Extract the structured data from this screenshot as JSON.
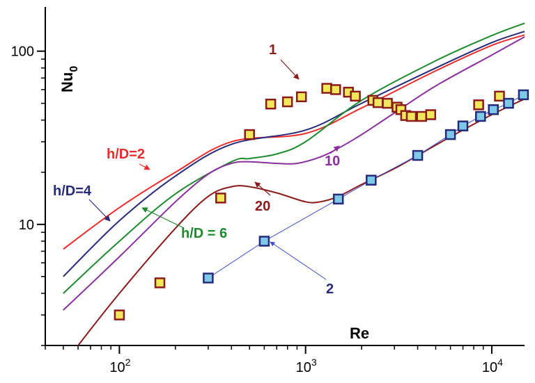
{
  "chart_data": {
    "type": "line",
    "title": "",
    "xlabel": "Re",
    "ylabel": "Nu",
    "ylabel_sub": "0",
    "x_scale": "log",
    "y_scale": "log",
    "xlim": [
      40,
      15000
    ],
    "ylim": [
      2,
      180
    ],
    "grid": false,
    "x_ticks": [
      {
        "value": 100,
        "base": "10",
        "exp": "2"
      },
      {
        "value": 1000,
        "base": "10",
        "exp": "3"
      },
      {
        "value": 10000,
        "base": "10",
        "exp": "4"
      }
    ],
    "y_ticks": [
      {
        "value": 10,
        "label": "10"
      },
      {
        "value": 100,
        "label": "100"
      }
    ],
    "series": [
      {
        "name": "h/D=2",
        "color": "#ee2b2b",
        "x": [
          50,
          100,
          200,
          400,
          1000,
          2000,
          5000,
          10000,
          15000
        ],
        "y": [
          7.2,
          12.5,
          20,
          30,
          33.5,
          47,
          77,
          108,
          124
        ]
      },
      {
        "name": "h/D=4",
        "color": "#252a7a",
        "x": [
          50,
          100,
          200,
          400,
          1000,
          2000,
          5000,
          10000,
          15000
        ],
        "y": [
          5,
          10.5,
          19,
          29,
          35,
          50,
          80,
          112,
          130
        ]
      },
      {
        "name": "h/D = 6",
        "color": "#1d8a2e",
        "x": [
          50,
          100,
          200,
          400,
          500,
          700,
          1000,
          2000,
          5000,
          10000,
          15000
        ],
        "y": [
          4,
          8,
          15,
          23,
          24,
          25.5,
          30,
          52,
          88,
          123,
          145
        ]
      },
      {
        "name": "10",
        "color": "#8a2f9e",
        "x": [
          50,
          100,
          200,
          300,
          400,
          500,
          700,
          900,
          1200,
          1500,
          2000,
          3000,
          5000,
          10000,
          15000
        ],
        "y": [
          3.2,
          6.5,
          13.5,
          19.5,
          22.5,
          23,
          22.5,
          22.5,
          24.5,
          27.5,
          33,
          44,
          63,
          95,
          121
        ]
      },
      {
        "name": "20",
        "color": "#8b1a1a",
        "x": [
          60,
          100,
          200,
          300,
          400,
          500,
          700,
          1000,
          1200,
          1500,
          2000,
          3000,
          4000,
          6000,
          10000,
          15000
        ],
        "y": [
          2,
          4,
          9.5,
          14.5,
          16.5,
          16.5,
          15.2,
          13.5,
          13.5,
          14.5,
          17,
          21,
          25,
          32,
          43,
          53
        ]
      }
    ],
    "points": [
      {
        "name": "1",
        "fill": "#f0e85a",
        "stroke": "#8b1a1a",
        "x": [
          100,
          165,
          350,
          500,
          650,
          800,
          950,
          1300,
          1450,
          1700,
          1850,
          2300,
          2450,
          2750,
          3100,
          3250,
          3450,
          3700,
          4200,
          4700,
          8500,
          11000
        ],
        "y": [
          3,
          4.6,
          14.2,
          33,
          49.5,
          51,
          54.5,
          61,
          60,
          58,
          55,
          52,
          50.5,
          50,
          47.5,
          46,
          42.5,
          42,
          42,
          43,
          49,
          55
        ]
      },
      {
        "name": "2",
        "fill": "#7ec8e8",
        "stroke": "#252a7a",
        "x": [
          300,
          600,
          1500,
          2250,
          4000,
          6000,
          7000,
          8700,
          10200,
          12300,
          14800
        ],
        "y": [
          4.9,
          8,
          14,
          18,
          25,
          33,
          37,
          42,
          46,
          50,
          56
        ]
      }
    ],
    "annotations": [
      {
        "text": "h/D=2",
        "color": "#ee2b2b"
      },
      {
        "text": "h/D=4",
        "color": "#252a7a"
      },
      {
        "text": "h/D = 6",
        "color": "#1d8a2e"
      },
      {
        "text": "10",
        "color": "#8a2f9e"
      },
      {
        "text": "20",
        "color": "#8b1a1a"
      },
      {
        "text": "1",
        "color": "#8b1a1a"
      },
      {
        "text": "2",
        "color": "#252a7a"
      }
    ]
  }
}
